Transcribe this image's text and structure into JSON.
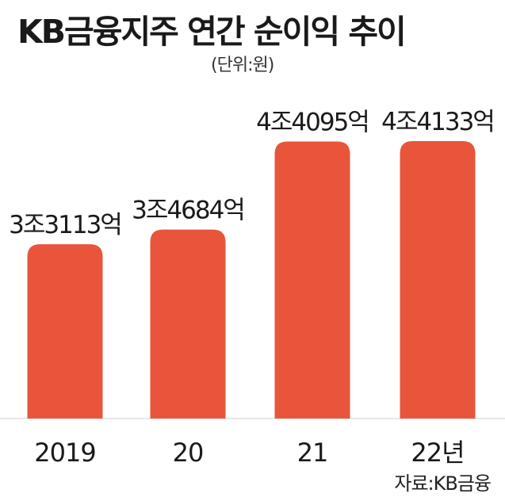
{
  "chart_data": {
    "type": "bar",
    "title": "KB금융지주 연간 순이익 추이",
    "subtitle": "(단위:원)",
    "categories": [
      "2019",
      "20",
      "21",
      "22년"
    ],
    "values": [
      33113,
      34684,
      44095,
      44133
    ],
    "value_labels": [
      "3조3113억",
      "3조4684억",
      "4조4095억",
      "4조4133억"
    ],
    "source": "자료:KB금융",
    "bar_color": "#e8553a",
    "grid": false,
    "legend": "none"
  }
}
